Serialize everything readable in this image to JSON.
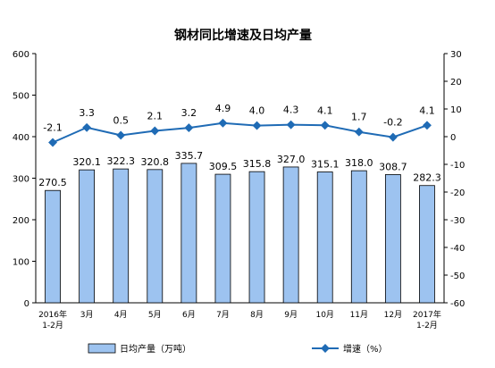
{
  "chart_data": {
    "type": "bar",
    "title": "钢材同比增速及日均产量",
    "categories": [
      [
        "2016年",
        "1-2月"
      ],
      [
        "3月"
      ],
      [
        "4月"
      ],
      [
        "5月"
      ],
      [
        "6月"
      ],
      [
        "7月"
      ],
      [
        "8月"
      ],
      [
        "9月"
      ],
      [
        "10月"
      ],
      [
        "11月"
      ],
      [
        "12月"
      ],
      [
        "2017年",
        "1-2月"
      ]
    ],
    "series": [
      {
        "name": "日均产量（万吨）",
        "type": "bar",
        "axis": "left",
        "color": "#9DC3F0",
        "values": [
          270.5,
          320.1,
          322.3,
          320.8,
          335.7,
          309.5,
          315.8,
          327.0,
          315.1,
          318.0,
          308.7,
          282.3
        ],
        "labels": [
          "270.5",
          "320.1",
          "322.3",
          "320.8",
          "335.7",
          "309.5",
          "315.8",
          "327.0",
          "315.1",
          "318.0",
          "308.7",
          "282.3"
        ]
      },
      {
        "name": "增速（%）",
        "type": "line",
        "axis": "right",
        "color": "#1F6BB5",
        "values": [
          -2.1,
          3.3,
          0.5,
          2.1,
          3.2,
          4.9,
          4.0,
          4.3,
          4.1,
          1.7,
          -0.2,
          4.1
        ],
        "labels": [
          "-2.1",
          "3.3",
          "0.5",
          "2.1",
          "3.2",
          "4.9",
          "4.0",
          "4.3",
          "4.1",
          "1.7",
          "-0.2",
          "4.1"
        ]
      }
    ],
    "left_axis": {
      "min": 0,
      "max": 600,
      "ticks": [
        0,
        100,
        200,
        300,
        400,
        500,
        600
      ],
      "tick_labels": [
        "0",
        "100",
        "200",
        "300",
        "400",
        "500",
        "600"
      ]
    },
    "right_axis": {
      "min": -60,
      "max": 30,
      "ticks": [
        -60,
        -50,
        -40,
        -30,
        -20,
        -10,
        0,
        10,
        20,
        30
      ],
      "tick_labels": [
        "-60",
        "-50",
        "-40",
        "-30",
        "-20",
        "-10",
        "0",
        "10",
        "20",
        "30"
      ]
    },
    "grid": false,
    "legend_position": "bottom"
  }
}
